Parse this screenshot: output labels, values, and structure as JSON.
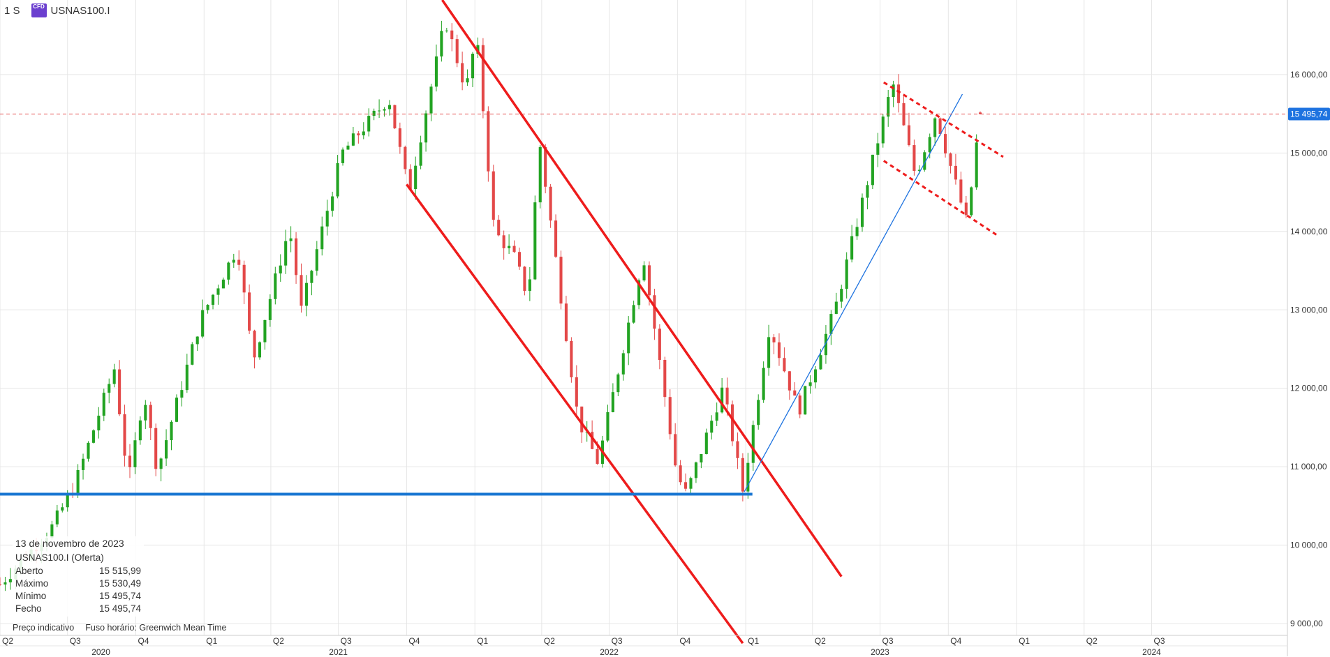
{
  "header": {
    "interval": "1 S",
    "badge": "CFD",
    "symbol": "USNAS100.I"
  },
  "info_panel": {
    "date": "13 de novembro de 2023",
    "instrument": "USNAS100.I (Oferta)",
    "rows": [
      {
        "label": "Aberto",
        "value": "15 515,99"
      },
      {
        "label": "Máximo",
        "value": "15 530,49"
      },
      {
        "label": "Mínimo",
        "value": "15 495,74"
      },
      {
        "label": "Fecho",
        "value": "15 495,74"
      }
    ]
  },
  "footer": {
    "price_note": "Preço indicativo",
    "timezone": "Fuso horário: Greenwich Mean Time"
  },
  "colors": {
    "up": "#22a322",
    "down": "#e34848",
    "trend_red": "#ee1c1c",
    "support_blue": "#1976d2",
    "trend_blue": "#1e73e0",
    "price_label_bg": "#1e73e0"
  },
  "chart_data": {
    "type": "candlestick",
    "grid": true,
    "y_ticks": [
      "9 000,00",
      "10 000,00",
      "11 000,00",
      "12 000,00",
      "13 000,00",
      "14 000,00",
      "15 000,00",
      "16 000,00"
    ],
    "y_tick_values": [
      9000,
      10000,
      11000,
      12000,
      13000,
      14000,
      15000,
      16000
    ],
    "ylim": [
      8850,
      16950
    ],
    "x_range": [
      "2020-04-01",
      "2024-12-31"
    ],
    "quarter_ticks": [
      {
        "label": "Q2",
        "date": "2020-04-01"
      },
      {
        "label": "Q3",
        "date": "2020-07-01"
      },
      {
        "label": "Q4",
        "date": "2020-10-01"
      },
      {
        "label": "Q1",
        "date": "2021-01-01"
      },
      {
        "label": "Q2",
        "date": "2021-04-01"
      },
      {
        "label": "Q3",
        "date": "2021-07-01"
      },
      {
        "label": "Q4",
        "date": "2021-10-01"
      },
      {
        "label": "Q1",
        "date": "2022-01-01"
      },
      {
        "label": "Q2",
        "date": "2022-04-01"
      },
      {
        "label": "Q3",
        "date": "2022-07-01"
      },
      {
        "label": "Q4",
        "date": "2022-10-01"
      },
      {
        "label": "Q1",
        "date": "2023-01-01"
      },
      {
        "label": "Q2",
        "date": "2023-04-01"
      },
      {
        "label": "Q3",
        "date": "2023-07-01"
      },
      {
        "label": "Q4",
        "date": "2023-10-01"
      },
      {
        "label": "Q1",
        "date": "2024-01-01"
      },
      {
        "label": "Q2",
        "date": "2024-04-01"
      },
      {
        "label": "Q3",
        "date": "2024-07-01"
      }
    ],
    "year_ticks": [
      {
        "label": "2020",
        "date": "2020-08-15"
      },
      {
        "label": "2021",
        "date": "2021-07-01"
      },
      {
        "label": "2022",
        "date": "2022-07-01"
      },
      {
        "label": "2023",
        "date": "2023-07-01"
      },
      {
        "label": "2024",
        "date": "2024-07-01"
      }
    ],
    "price_line": {
      "value": 15495.74,
      "label": "15 495,74"
    },
    "waypoints": [
      [
        "2020-04-01",
        9500
      ],
      [
        "2020-06-08",
        10200
      ],
      [
        "2020-07-10",
        10750
      ],
      [
        "2020-09-02",
        12250
      ],
      [
        "2020-09-21",
        10800
      ],
      [
        "2020-10-12",
        11950
      ],
      [
        "2020-10-30",
        10950
      ],
      [
        "2020-12-28",
        12900
      ],
      [
        "2021-02-15",
        13800
      ],
      [
        "2021-03-08",
        12350
      ],
      [
        "2021-04-26",
        14050
      ],
      [
        "2021-05-12",
        13000
      ],
      [
        "2021-07-06",
        15000
      ],
      [
        "2021-09-07",
        15700
      ],
      [
        "2021-10-04",
        14500
      ],
      [
        "2021-11-22",
        16700
      ],
      [
        "2021-12-20",
        15800
      ],
      [
        "2022-01-03",
        16500
      ],
      [
        "2022-01-27",
        14000
      ],
      [
        "2022-02-22",
        13700
      ],
      [
        "2022-03-14",
        13150
      ],
      [
        "2022-03-29",
        15150
      ],
      [
        "2022-05-20",
        11600
      ],
      [
        "2022-06-16",
        11050
      ],
      [
        "2022-08-16",
        13700
      ],
      [
        "2022-09-30",
        10900
      ],
      [
        "2022-10-13",
        10650
      ],
      [
        "2022-12-01",
        12000
      ],
      [
        "2022-12-28",
        10700
      ],
      [
        "2023-02-02",
        12800
      ],
      [
        "2023-03-13",
        11700
      ],
      [
        "2023-05-01",
        13000
      ],
      [
        "2023-07-18",
        15900
      ],
      [
        "2023-08-18",
        14700
      ],
      [
        "2023-09-14",
        15500
      ],
      [
        "2023-10-26",
        14100
      ],
      [
        "2023-11-13",
        15496
      ]
    ],
    "last_candle": {
      "date": "2023-11-13",
      "open": 15515.99,
      "high": 15530.49,
      "low": 15495.74,
      "close": 15495.74
    },
    "drawings": [
      {
        "kind": "trend",
        "style": "solid-red",
        "from": [
          "2021-10-01",
          14600
        ],
        "to": [
          "2022-12-28",
          8750
        ]
      },
      {
        "kind": "trend",
        "style": "solid-red",
        "from": [
          "2021-11-18",
          16950
        ],
        "to": [
          "2023-05-10",
          9600
        ]
      },
      {
        "kind": "support",
        "style": "solid-blue",
        "from": [
          "2020-04-01",
          10650
        ],
        "to": [
          "2023-01-10",
          10650
        ]
      },
      {
        "kind": "trend",
        "style": "thin-blue",
        "from": [
          "2022-12-30",
          10680
        ],
        "to": [
          "2023-10-20",
          15750
        ]
      },
      {
        "kind": "channel",
        "style": "dashed-red",
        "from": [
          "2023-07-06",
          15900
        ],
        "to": [
          "2023-12-14",
          14950
        ]
      },
      {
        "kind": "channel",
        "style": "dashed-red",
        "from": [
          "2023-07-06",
          14900
        ],
        "to": [
          "2023-12-06",
          13950
        ]
      }
    ]
  }
}
